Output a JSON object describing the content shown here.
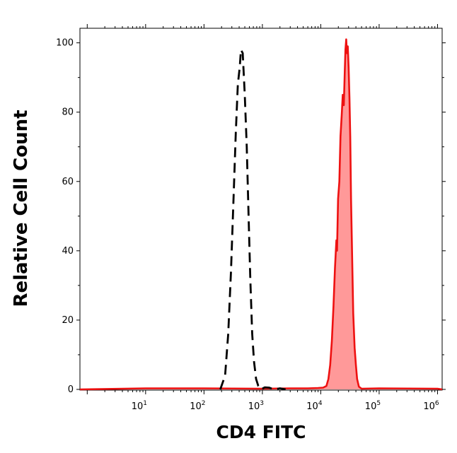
{
  "chart_data": {
    "type": "area",
    "xlabel": "CD4 FITC",
    "ylabel": "Relative Cell Count",
    "xscale": "log",
    "xlim": [
      0.75,
      1200000
    ],
    "ylim": [
      0,
      104
    ],
    "yticks": [
      0,
      20,
      40,
      60,
      80,
      100
    ],
    "xticks": [
      {
        "base": "10",
        "exp": "1",
        "value": 10
      },
      {
        "base": "10",
        "exp": "2",
        "value": 100
      },
      {
        "base": "10",
        "exp": "3",
        "value": 1000
      },
      {
        "base": "10",
        "exp": "4",
        "value": 10000
      },
      {
        "base": "10",
        "exp": "5",
        "value": 100000
      },
      {
        "base": "10",
        "exp": "6",
        "value": 1000000
      }
    ],
    "grid": false,
    "series": [
      {
        "style": "dashed-black",
        "color": "#000000",
        "filled": false,
        "points": [
          [
            190,
            0
          ],
          [
            230,
            4
          ],
          [
            260,
            16
          ],
          [
            290,
            34
          ],
          [
            320,
            55
          ],
          [
            350,
            74
          ],
          [
            380,
            88
          ],
          [
            410,
            93
          ],
          [
            430,
            98
          ],
          [
            460,
            97
          ],
          [
            500,
            85
          ],
          [
            540,
            70
          ],
          [
            580,
            50
          ],
          [
            620,
            32
          ],
          [
            670,
            16
          ],
          [
            720,
            8
          ],
          [
            780,
            3
          ],
          [
            850,
            1
          ],
          [
            950,
            0
          ],
          [
            1100,
            0.6
          ],
          [
            1300,
            0.5
          ],
          [
            1600,
            0
          ],
          [
            2000,
            0.3
          ],
          [
            2500,
            0
          ]
        ]
      },
      {
        "style": "solid-red-filled",
        "color": "#ee1111",
        "fill": "#ff9999",
        "filled": true,
        "points": [
          [
            0.75,
            0
          ],
          [
            10,
            0.3
          ],
          [
            100,
            0.3
          ],
          [
            1000,
            0.2
          ],
          [
            3000,
            0.3
          ],
          [
            6000,
            0.3
          ],
          [
            9000,
            0.4
          ],
          [
            11000,
            0.5
          ],
          [
            12500,
            1
          ],
          [
            13500,
            3
          ],
          [
            14500,
            7
          ],
          [
            15500,
            14
          ],
          [
            16500,
            24
          ],
          [
            17500,
            35
          ],
          [
            18500,
            43
          ],
          [
            19000,
            40
          ],
          [
            19800,
            55
          ],
          [
            20800,
            60
          ],
          [
            21800,
            73
          ],
          [
            22800,
            79
          ],
          [
            23800,
            85
          ],
          [
            24800,
            82
          ],
          [
            25800,
            92
          ],
          [
            26500,
            98
          ],
          [
            27300,
            101
          ],
          [
            28100,
            97
          ],
          [
            29000,
            99
          ],
          [
            30000,
            93
          ],
          [
            31000,
            84
          ],
          [
            32000,
            73
          ],
          [
            33000,
            55
          ],
          [
            34500,
            38
          ],
          [
            36000,
            22
          ],
          [
            38000,
            12
          ],
          [
            40000,
            7
          ],
          [
            42000,
            3
          ],
          [
            45000,
            0.8
          ],
          [
            50000,
            0.2
          ],
          [
            100000,
            0.3
          ],
          [
            1000000,
            0.2
          ],
          [
            1200000,
            0
          ]
        ]
      }
    ]
  }
}
